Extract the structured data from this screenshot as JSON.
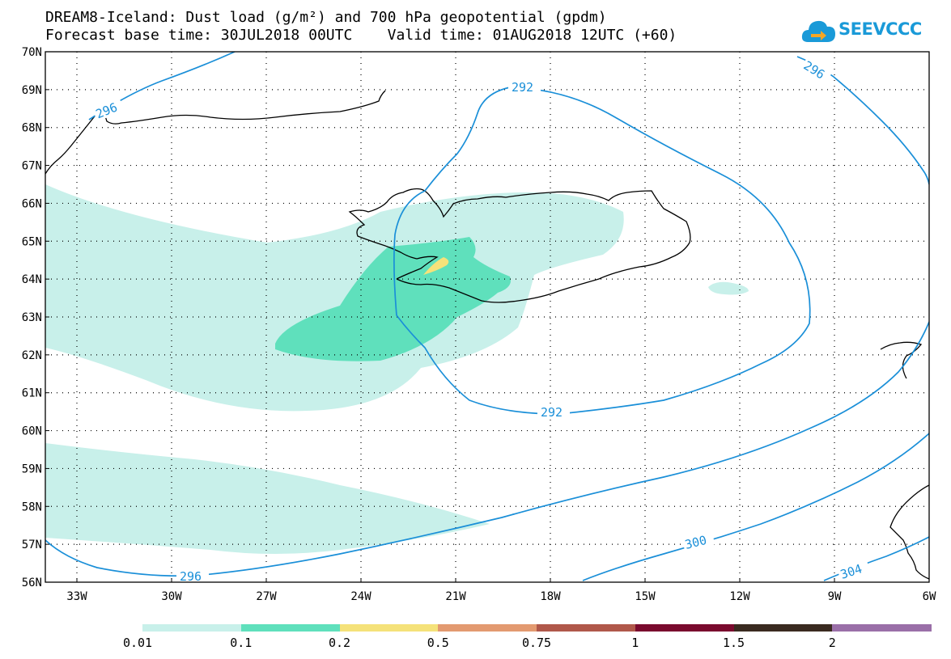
{
  "header": {
    "title_line1": "DREAM8-Iceland: Dust load (g/m²) and 700 hPa geopotential (gpdm)",
    "title_line2": "Forecast base time: 30JUL2018 00UTC    Valid time: 01AUG2018 12UTC (+60)"
  },
  "logo": {
    "text": "SEEVCCC",
    "color": "#1a9ad8"
  },
  "map": {
    "lat_labels": [
      "70N",
      "69N",
      "68N",
      "67N",
      "66N",
      "65N",
      "64N",
      "63N",
      "62N",
      "61N",
      "60N",
      "59N",
      "58N",
      "57N",
      "56N"
    ],
    "lon_labels": [
      "33W",
      "30W",
      "27W",
      "24W",
      "21W",
      "18W",
      "15W",
      "12W",
      "9W",
      "6W"
    ],
    "contour_labels": {
      "c292_top": "292",
      "c292_bottom": "292",
      "c296_nw": "296",
      "c296_ne": "296",
      "c296_south": "296",
      "c300": "300",
      "c304": "304"
    },
    "contour_color": "#1a8fd8"
  },
  "legend": {
    "colors": [
      "#c8f0ea",
      "#5fe0bc",
      "#f5e27a",
      "#e39a70",
      "#b0584a",
      "#7a0a2e",
      "#3a2a20",
      "#9a6fa8"
    ],
    "labels": [
      "0.01",
      "0.1",
      "0.2",
      "0.5",
      "0.75",
      "1",
      "1.5",
      "2"
    ]
  }
}
